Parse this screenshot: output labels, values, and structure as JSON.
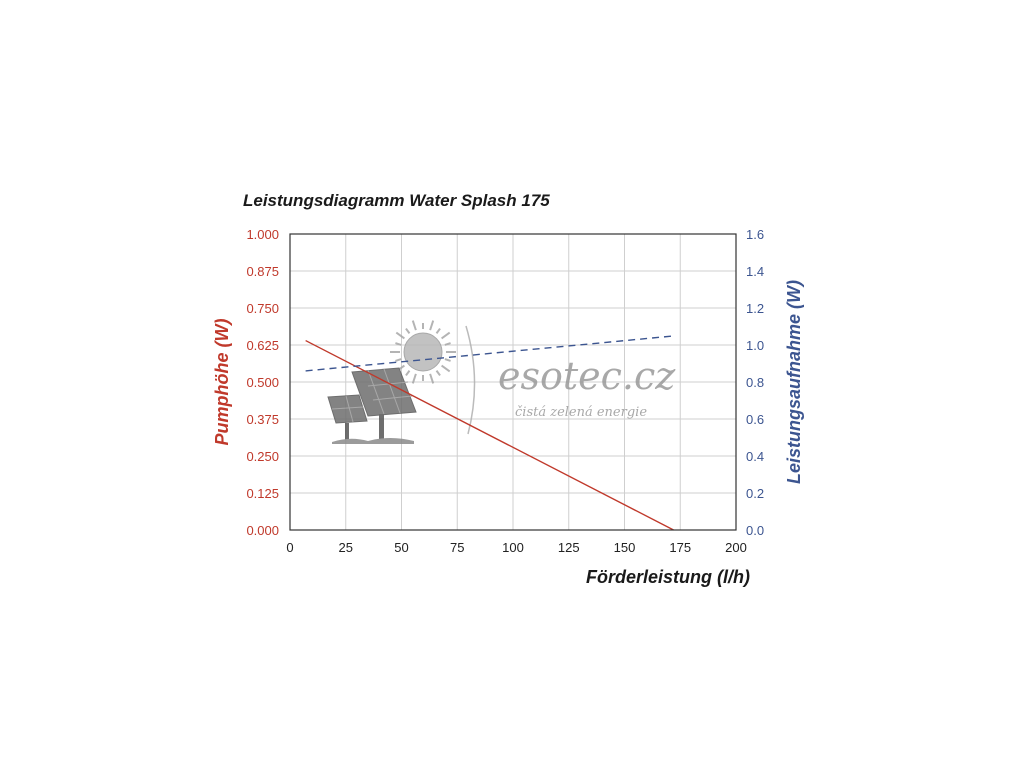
{
  "chart_data": {
    "type": "line",
    "title": "Leistungsdiagramm Water Splash 175",
    "xlabel": "Förderleistung (l/h)",
    "ylabel_left": "Pumphöhe (W)",
    "ylabel_right": "Leistungsaufnahme (W)",
    "xlim": [
      0,
      200
    ],
    "ylim_left": [
      0,
      1
    ],
    "ylim_right": [
      0,
      1.6
    ],
    "x_ticks": [
      "0",
      "25",
      "50",
      "75",
      "100",
      "125",
      "150",
      "175",
      "200"
    ],
    "y_ticks_left": [
      "0.000",
      "0.125",
      "0.250",
      "0.375",
      "0.500",
      "0.625",
      "0.750",
      "0.875",
      "1.000"
    ],
    "y_ticks_right": [
      "0.0",
      "0.2",
      "0.4",
      "0.6",
      "0.8",
      "1.0",
      "1.2",
      "1.4",
      "1.6"
    ],
    "grid": true,
    "series": [
      {
        "axis": "left",
        "style": "solid",
        "color": "#c0392b",
        "x": [
          7,
          172
        ],
        "y": [
          0.64,
          0.0
        ]
      },
      {
        "axis": "right",
        "style": "dashed",
        "color": "#3c5590",
        "x": [
          7,
          173
        ],
        "y": [
          0.86,
          1.05
        ]
      }
    ]
  },
  "watermark": {
    "brand": "esotec.cz",
    "tagline": "čistá zelená energie"
  }
}
